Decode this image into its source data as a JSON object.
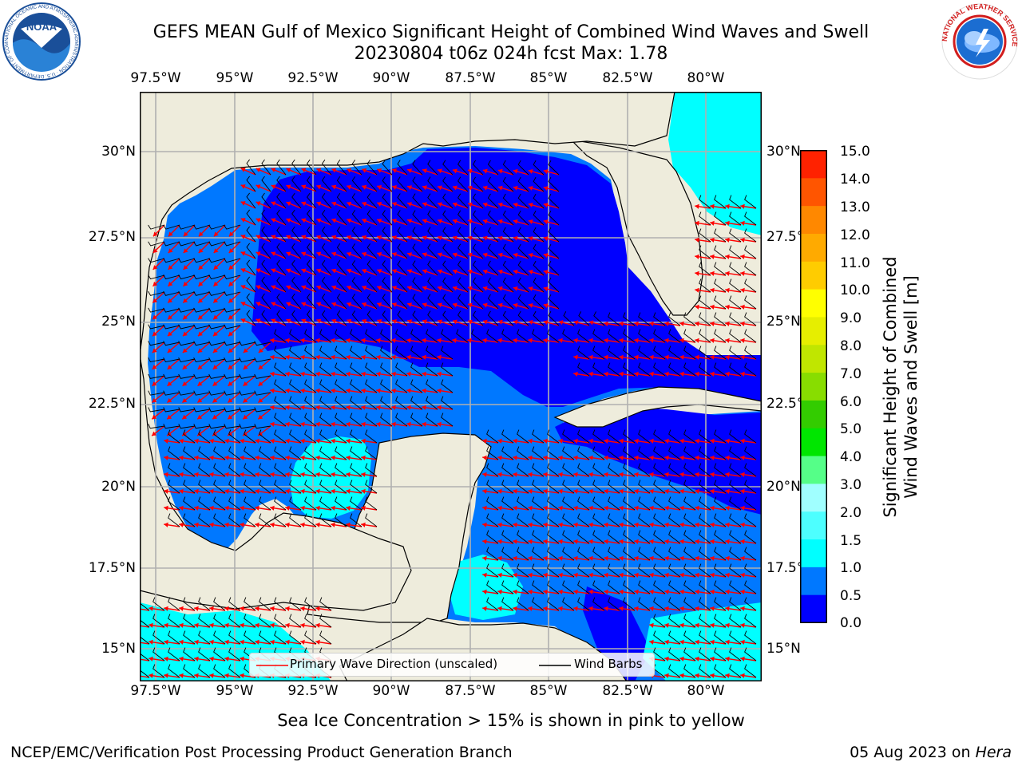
{
  "title": {
    "line1": "GEFS MEAN Gulf of Mexico Significant Height of Combined Wind Waves and Swell",
    "line2": "20230804 t06z 024h fcst   Max: 1.78"
  },
  "map": {
    "lon_ticks": [
      "97.5°W",
      "95°W",
      "92.5°W",
      "90°W",
      "87.5°W",
      "85°W",
      "82.5°W",
      "80°W"
    ],
    "lat_ticks": [
      "30°N",
      "27.5°N",
      "25°N",
      "22.5°N",
      "20°N",
      "17.5°N",
      "15°N"
    ],
    "lon_range": [
      -98,
      -78.5
    ],
    "lat_range": [
      14,
      31.8
    ],
    "land_color": "#eeecdc",
    "grid_color": "#b0b0b0",
    "arrow_color": "#ff0000",
    "barb_color": "#000000"
  },
  "legend": {
    "wave_label": "Primary Wave Direction (unscaled)",
    "barb_label": "Wind Barbs"
  },
  "colorbar": {
    "label_line1": "Significant Height of Combined",
    "label_line2": "Wind Waves and Swell [m]",
    "ticks": [
      "15.0",
      "14.0",
      "13.0",
      "12.0",
      "11.0",
      "10.0",
      "9.0",
      "8.0",
      "7.0",
      "6.0",
      "5.0",
      "4.0",
      "3.0",
      "2.0",
      "1.5",
      "1.0",
      "0.5",
      "0.0"
    ],
    "colors_bottom_to_top": [
      "#0000ff",
      "#0078ff",
      "#00ffff",
      "#4dffff",
      "#a0ffff",
      "#55ff88",
      "#00e600",
      "#33cc00",
      "#88dd00",
      "#c0e600",
      "#e6ee00",
      "#ffff00",
      "#ffcc00",
      "#ffaa00",
      "#ff8800",
      "#ff5500",
      "#ff2200"
    ]
  },
  "footer": {
    "sea_ice_note": "Sea Ice Concentration > 15% is shown in pink to yellow",
    "org": "NCEP/EMC/Verification Post Processing Product Generation Branch",
    "date": "05 Aug 2023 on ",
    "machine": "Hera"
  },
  "logos": {
    "noaa": "NOAA",
    "noaa_ring": "NATIONAL OCEANIC AND ATMOSPHERIC ADMINISTRATION · U.S. DEPARTMENT OF COMMERCE",
    "nws_ring": "NATIONAL WEATHER SERVICE"
  }
}
